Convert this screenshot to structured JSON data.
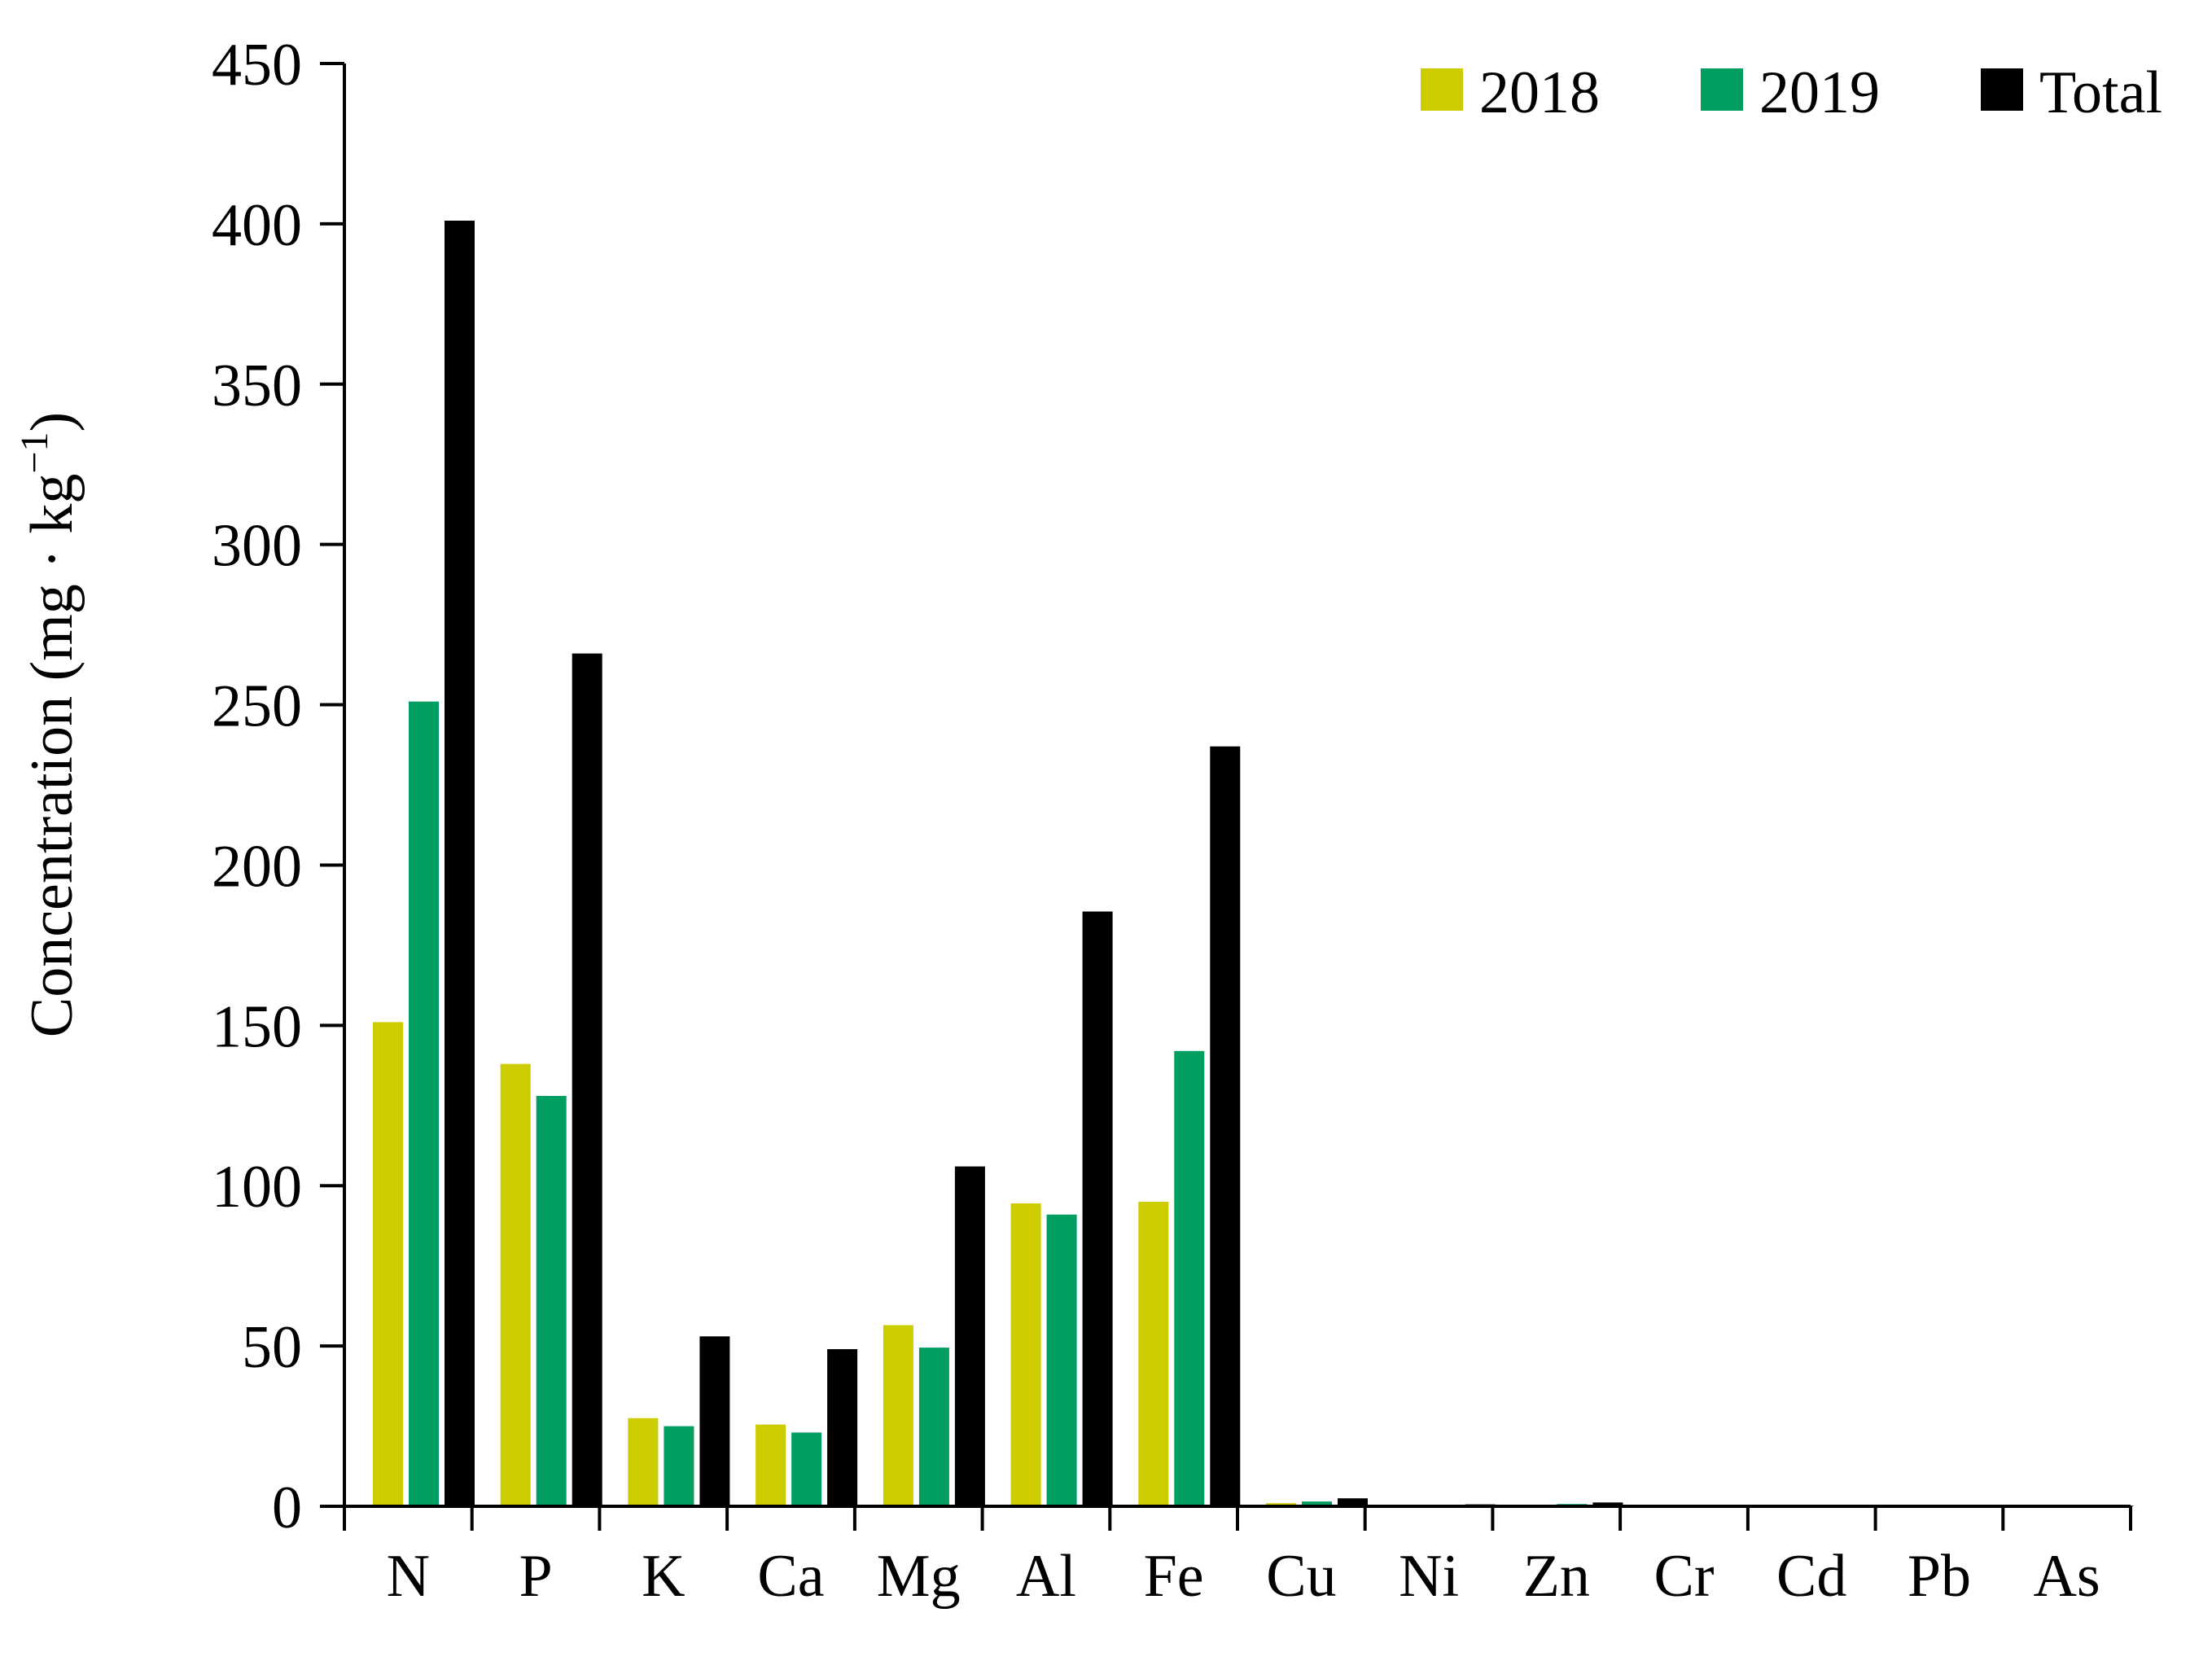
{
  "chart_data": {
    "type": "bar",
    "title": "",
    "xlabel": "",
    "ylabel": "Concentration (mg · kg",
    "ylabel_superscript": "−1",
    "ylabel_close": ")",
    "categories": [
      "N",
      "P",
      "K",
      "Ca",
      "Mg",
      "Al",
      "Fe",
      "Cu",
      "Ni",
      "Zn",
      "Cr",
      "Cd",
      "Pb",
      "As"
    ],
    "series": [
      {
        "name": "2018",
        "color": "#CCCC00",
        "values": [
          151,
          138,
          27.5,
          25.5,
          56.5,
          94.5,
          95,
          1.0,
          0.3,
          0.5,
          0.2,
          0.1,
          0.1,
          0.1
        ]
      },
      {
        "name": "2019",
        "color": "#009E60",
        "values": [
          251,
          128,
          25,
          23,
          49.5,
          91,
          142,
          1.5,
          0.3,
          0.7,
          0.2,
          0.1,
          0.1,
          0.1
        ]
      },
      {
        "name": "Total",
        "color": "#000000",
        "values": [
          401,
          266,
          53,
          49,
          106,
          185.5,
          237,
          2.5,
          0.6,
          1.2,
          0.4,
          0.2,
          0.2,
          0.2
        ]
      }
    ],
    "ylim": [
      0,
      450
    ],
    "yticks": [
      0,
      50,
      100,
      150,
      200,
      250,
      300,
      350,
      400,
      450
    ],
    "ytick_labels": [
      "0",
      "50",
      "100",
      "150",
      "200",
      "250",
      "300",
      "350",
      "400",
      "450"
    ],
    "grid": false,
    "legend_position": "top-right"
  }
}
